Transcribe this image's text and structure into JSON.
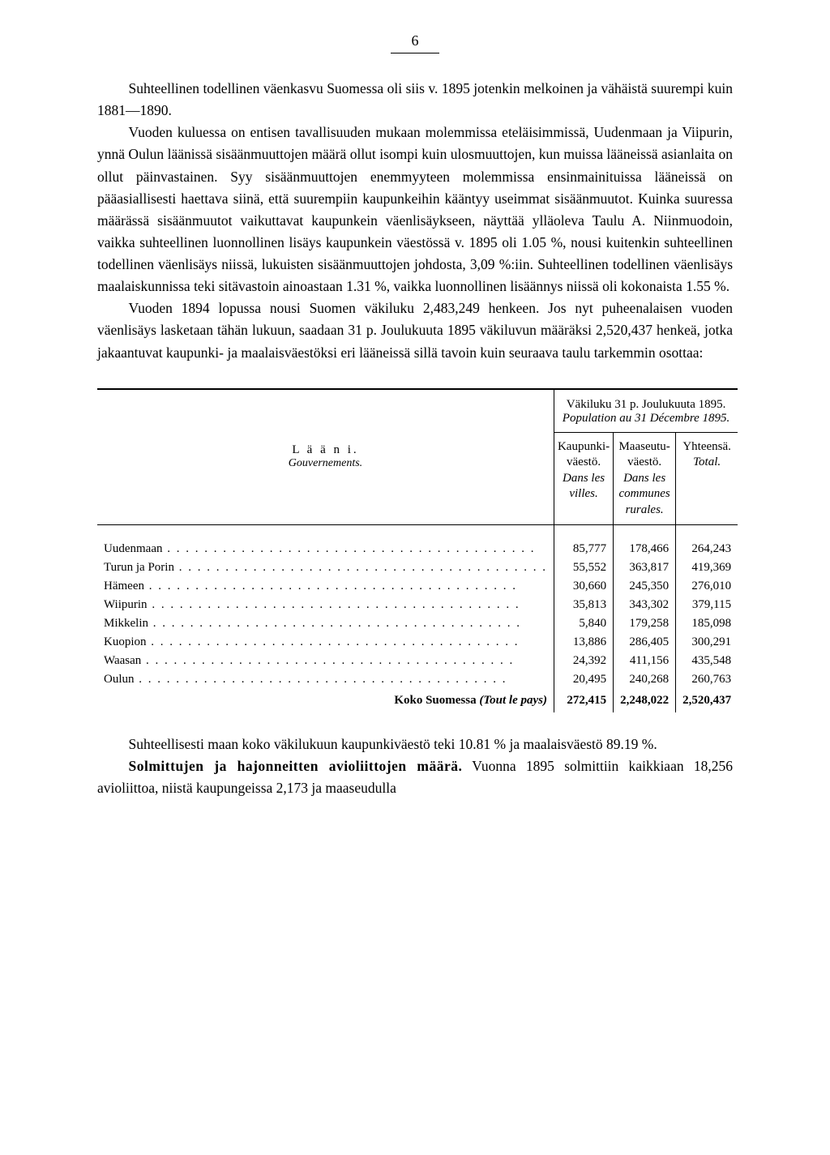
{
  "page_number": "6",
  "paragraphs": {
    "p1": "Suhteellinen todellinen väenkasvu Suomessa oli siis v. 1895 jotenkin melkoinen ja vähäistä suurempi kuin 1881—1890.",
    "p2": "Vuoden kuluessa on entisen tavallisuuden mukaan molemmissa eteläisimmissä, Uudenmaan ja Viipurin, ynnä Oulun läänissä sisäänmuuttojen määrä ollut isompi kuin ulosmuuttojen, kun muissa lääneissä asianlaita on ollut päinvastainen. Syy sisäänmuuttojen enemmyyteen molemmissa ensinmainituissa lääneissä on pääasiallisesti haettava siinä, että suurempiin kaupunkeihin kääntyy useimmat sisäänmuutot. Kuinka suuressa määrässä sisäänmuutot vaikuttavat kaupunkein väenlisäykseen, näyttää ylläoleva Taulu A. Niinmuodoin, vaikka suhteellinen luonnollinen lisäys kaupunkein väestössä v. 1895 oli 1.05 %, nousi kuitenkin suhteellinen todellinen väenlisäys niissä, lukuisten sisäänmuuttojen johdosta, 3,09 %:iin. Suhteellinen todellinen väenlisäys maalaiskunnissa teki sitävastoin ainoastaan 1.31 %, vaikka luonnollinen lisäännys niissä oli kokonaista 1.55 %.",
    "p3": "Vuoden 1894 lopussa nousi Suomen väkiluku 2,483,249 henkeen. Jos nyt puheenalaisen vuoden väenlisäys lasketaan tähän lukuun, saadaan 31 p. Joulukuuta 1895 väkiluvun määräksi 2,520,437 henkeä, jotka jakaantuvat kaupunki- ja maalaisväestöksi eri lääneissä sillä tavoin kuin seuraava taulu tarkemmin osottaa:",
    "p4": "Suhteellisesti maan koko väkilukuun kaupunkiväestö teki 10.81 % ja maalaisväestö 89.19 %.",
    "p5_runin": "Solmittujen ja hajonneitten avioliittojen määrä.",
    "p5_rest": "  Vuonna 1895 solmittiin kaikkiaan 18,256 avioliittoa, niistä kaupungeissa 2,173 ja maaseudulla"
  },
  "table": {
    "header_left_main": "L ä ä n i.",
    "header_left_sub": "Gouvernements.",
    "header_top_main": "Väkiluku 31 p. Joulukuuta 1895.",
    "header_top_sub": "Population au 31 Décembre 1895.",
    "col1_main": "Kaupunki-väestö.",
    "col1_sub": "Dans les villes.",
    "col2_main": "Maaseutu-väestö.",
    "col2_sub": "Dans les communes rurales.",
    "col3_main": "Yhteensä.",
    "col3_sub": "Total.",
    "rows": [
      {
        "label": "Uudenmaan",
        "c1": "85,777",
        "c2": "178,466",
        "c3": "264,243"
      },
      {
        "label": "Turun ja Porin",
        "c1": "55,552",
        "c2": "363,817",
        "c3": "419,369"
      },
      {
        "label": "Hämeen",
        "c1": "30,660",
        "c2": "245,350",
        "c3": "276,010"
      },
      {
        "label": "Wiipurin",
        "c1": "35,813",
        "c2": "343,302",
        "c3": "379,115"
      },
      {
        "label": "Mikkelin",
        "c1": "5,840",
        "c2": "179,258",
        "c3": "185,098"
      },
      {
        "label": "Kuopion",
        "c1": "13,886",
        "c2": "286,405",
        "c3": "300,291"
      },
      {
        "label": "Waasan",
        "c1": "24,392",
        "c2": "411,156",
        "c3": "435,548"
      },
      {
        "label": "Oulun",
        "c1": "20,495",
        "c2": "240,268",
        "c3": "260,763"
      }
    ],
    "total_label_main": "Koko Suomessa ",
    "total_label_sub": "(Tout le pays)",
    "total_c1": "272,415",
    "total_c2": "2,248,022",
    "total_c3": "2,520,437"
  }
}
